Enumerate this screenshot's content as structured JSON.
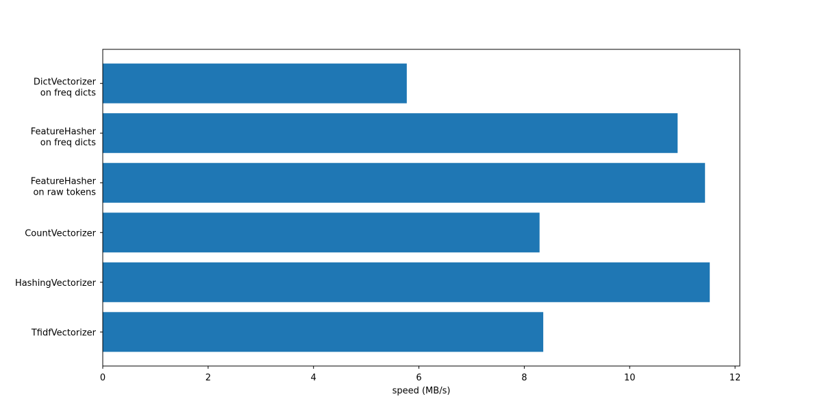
{
  "chart_data": {
    "type": "barh",
    "xlabel": "speed (MB/s)",
    "categories": [
      "DictVectorizer\non freq dicts",
      "FeatureHasher\non freq dicts",
      "FeatureHasher\non raw tokens",
      "CountVectorizer",
      "HashingVectorizer",
      "TfidfVectorizer"
    ],
    "values": [
      5.77,
      10.91,
      11.43,
      8.29,
      11.52,
      8.36
    ],
    "color": "#1f77b4",
    "xlim": [
      0,
      12.09
    ],
    "xticks": [
      0,
      2,
      4,
      6,
      8,
      10,
      12
    ],
    "grid": false
  }
}
